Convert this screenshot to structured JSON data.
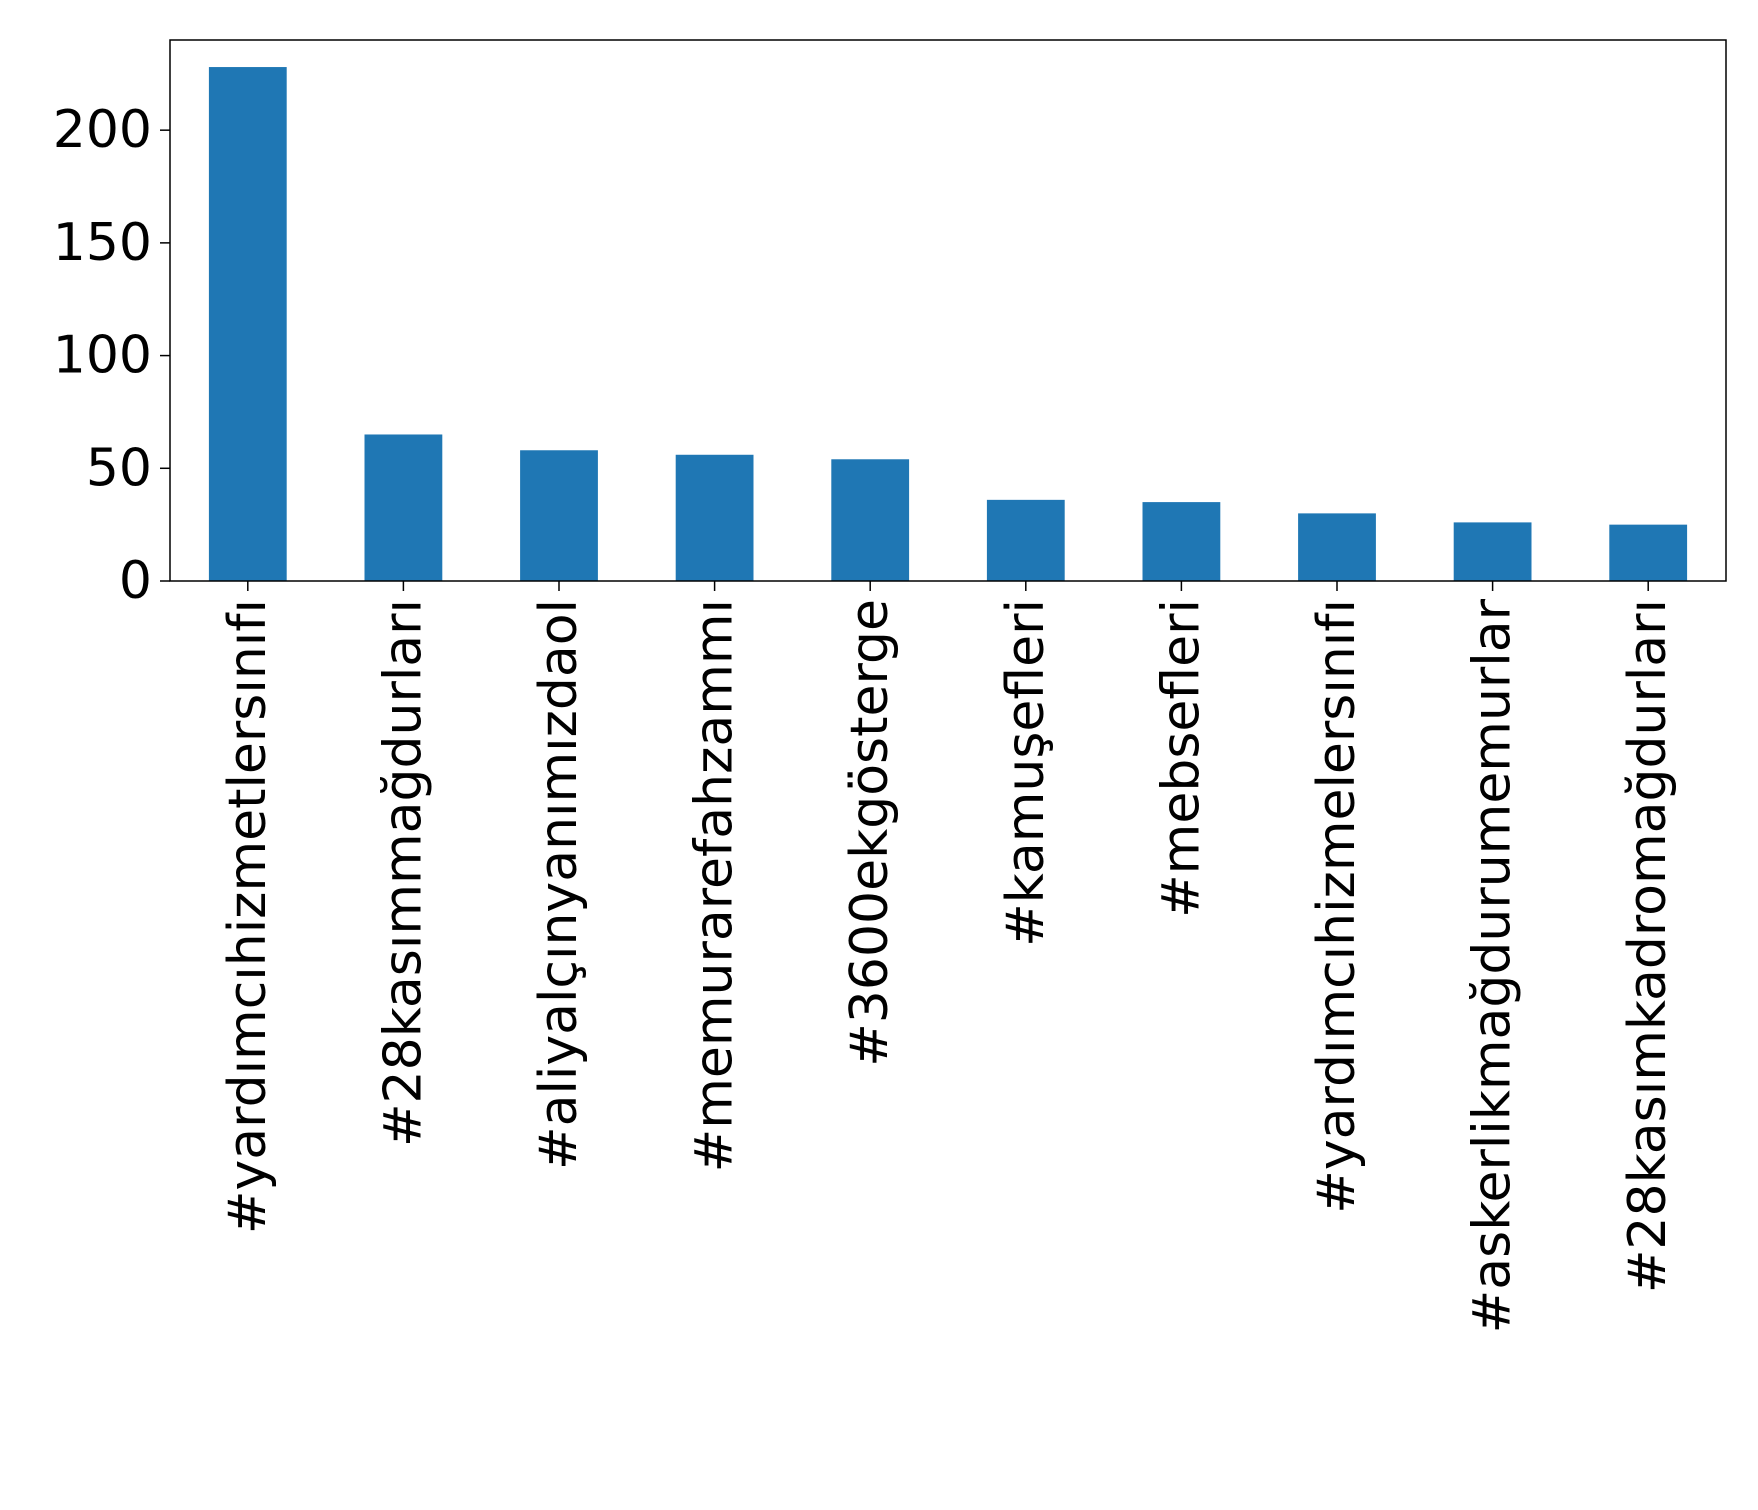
{
  "chart_data": {
    "type": "bar",
    "categories": [
      "#yardımcıhizmetlersınıfı",
      "#28kasımmağdurları",
      "#aliyalçınyanımızdaol",
      "#memurarefahzammı",
      "#3600ekgösterge",
      "#kamuşefleri",
      "#mebsefleri",
      "#yardımcıhizmelersınıfı",
      "#askerlikmağdurumemurlar",
      "#28kasımkadromağdurları"
    ],
    "values": [
      228,
      65,
      58,
      56,
      54,
      36,
      35,
      30,
      26,
      25
    ],
    "ylim": [
      0,
      240
    ],
    "yticks": [
      0,
      50,
      100,
      150,
      200
    ],
    "grid": false,
    "colors": {
      "bar": "#1f77b4",
      "axis": "#000000"
    }
  }
}
